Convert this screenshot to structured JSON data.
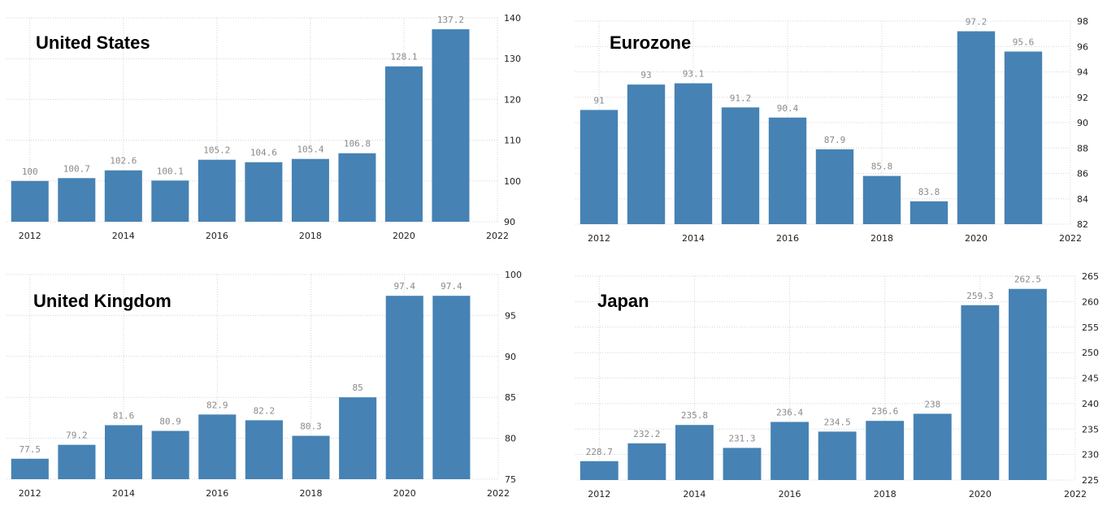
{
  "chart_data": [
    {
      "type": "bar",
      "title": "United States",
      "categories": [
        "2012",
        "2013",
        "2014",
        "2015",
        "2016",
        "2017",
        "2018",
        "2019",
        "2020",
        "2021"
      ],
      "values": [
        100,
        100.7,
        102.6,
        100.1,
        105.2,
        104.6,
        105.4,
        106.8,
        128.1,
        137.2
      ],
      "value_labels": [
        "100",
        "100.7",
        "102.6",
        "100.1",
        "105.2",
        "104.6",
        "105.4",
        "106.8",
        "128.1",
        "137.2"
      ],
      "x_ticks": [
        "2012",
        "2014",
        "2016",
        "2018",
        "2020",
        "2022"
      ],
      "y_ticks": [
        "90",
        "100",
        "110",
        "120",
        "130",
        "140"
      ],
      "ylim": [
        90,
        140
      ],
      "grid": true
    },
    {
      "type": "bar",
      "title": "Eurozone",
      "categories": [
        "2012",
        "2013",
        "2014",
        "2015",
        "2016",
        "2017",
        "2018",
        "2019",
        "2020",
        "2021"
      ],
      "values": [
        91,
        93,
        93.1,
        91.2,
        90.4,
        87.9,
        85.8,
        83.8,
        97.2,
        95.6
      ],
      "value_labels": [
        "91",
        "93",
        "93.1",
        "91.2",
        "90.4",
        "87.9",
        "85.8",
        "83.8",
        "97.2",
        "95.6"
      ],
      "x_ticks": [
        "2012",
        "2014",
        "2016",
        "2018",
        "2020",
        "2022"
      ],
      "y_ticks": [
        "82",
        "84",
        "86",
        "88",
        "90",
        "92",
        "94",
        "96",
        "98"
      ],
      "ylim": [
        82,
        98
      ],
      "grid": true
    },
    {
      "type": "bar",
      "title": "United Kingdom",
      "categories": [
        "2012",
        "2013",
        "2014",
        "2015",
        "2016",
        "2017",
        "2018",
        "2019",
        "2020",
        "2021"
      ],
      "values": [
        77.5,
        79.2,
        81.6,
        80.9,
        82.9,
        82.2,
        80.3,
        85,
        97.4,
        97.4
      ],
      "value_labels": [
        "77.5",
        "79.2",
        "81.6",
        "80.9",
        "82.9",
        "82.2",
        "80.3",
        "85",
        "97.4",
        "97.4"
      ],
      "x_ticks": [
        "2012",
        "2014",
        "2016",
        "2018",
        "2020",
        "2022"
      ],
      "y_ticks": [
        "75",
        "80",
        "85",
        "90",
        "95",
        "100"
      ],
      "ylim": [
        75,
        100
      ],
      "grid": true
    },
    {
      "type": "bar",
      "title": "Japan",
      "categories": [
        "2012",
        "2013",
        "2014",
        "2015",
        "2016",
        "2017",
        "2018",
        "2019",
        "2020",
        "2021"
      ],
      "values": [
        228.7,
        232.2,
        235.8,
        231.3,
        236.4,
        234.5,
        236.6,
        238,
        259.3,
        262.5
      ],
      "value_labels": [
        "228.7",
        "232.2",
        "235.8",
        "231.3",
        "236.4",
        "234.5",
        "236.6",
        "238",
        "259.3",
        "262.5"
      ],
      "x_ticks": [
        "2012",
        "2014",
        "2016",
        "2018",
        "2020",
        "2022"
      ],
      "y_ticks": [
        "225",
        "230",
        "235",
        "240",
        "245",
        "250",
        "255",
        "260",
        "265"
      ],
      "ylim": [
        225,
        265
      ],
      "grid": true
    }
  ],
  "colors": {
    "bar": "#4682b4"
  }
}
